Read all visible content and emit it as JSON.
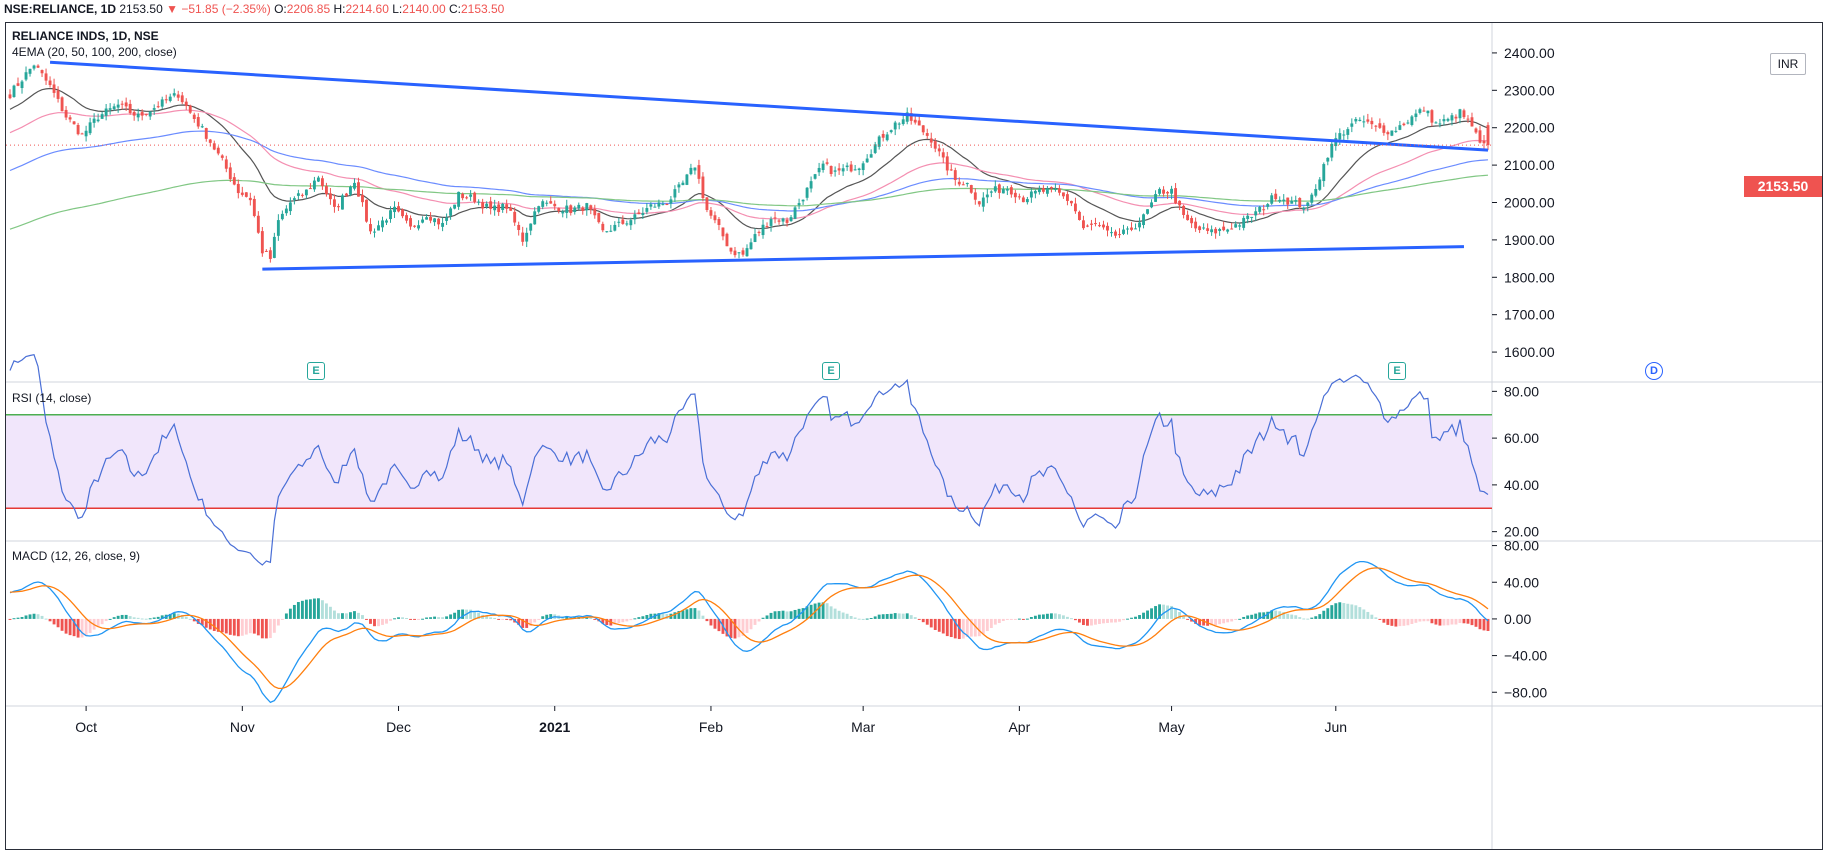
{
  "header": {
    "symbol": "NSE:RELIANCE, 1D",
    "last": "2153.50",
    "change": "−51.85 (−2.35%)",
    "open_label": "O:",
    "open": "2206.85",
    "high_label": "H:",
    "high": "2214.60",
    "low_label": "L:",
    "low": "2140.00",
    "close_label": "C:",
    "close": "2153.50"
  },
  "price_pane": {
    "title": "RELIANCE INDS, 1D, NSE",
    "indicator": "4EMA (20, 50, 100, 200, close)",
    "currency": "INR",
    "last_price": "2153.50",
    "event_badges": [
      "E",
      "E",
      "E",
      "D"
    ]
  },
  "rsi_pane": {
    "title": "RSI (14, close)"
  },
  "macd_pane": {
    "title": "MACD (12, 26, close, 9)"
  },
  "colors": {
    "up": "#26a69a",
    "down": "#ef5350",
    "trendline": "#2962ff",
    "ema20": "#555555",
    "ema50": "#f48fb1",
    "ema100": "#6b8cff",
    "ema200": "#81c784",
    "rsi_line": "#4a6fd6",
    "rsi_band": "#f1e6fb",
    "rsi_upper": "#4caf50",
    "rsi_lower": "#e53935",
    "macd_line": "#2196f3",
    "signal_line": "#ff7f0e"
  },
  "chart_data": [
    {
      "type": "candlestick",
      "title": "RELIANCE INDS, 1D, NSE",
      "ylim": [
        1520,
        2480
      ],
      "yticks": [
        1600,
        1700,
        1800,
        1900,
        2000,
        2100,
        2200,
        2300,
        2400
      ],
      "ytick_labels": [
        "1600.00",
        "1700.00",
        "1800.00",
        "1900.00",
        "2000.00",
        "2100.00",
        "2200.00",
        "2300.00",
        "2400.00"
      ],
      "x_labels": [
        "Oct",
        "Nov",
        "Dec",
        "2021",
        "Feb",
        "Mar",
        "Apr",
        "May",
        "Jun"
      ],
      "x_label_days": [
        19,
        58,
        97,
        136,
        175,
        213,
        252,
        290,
        331
      ],
      "n_days": 370,
      "close_anchors": [
        [
          0,
          2290
        ],
        [
          3,
          2330
        ],
        [
          6,
          2370
        ],
        [
          10,
          2310
        ],
        [
          14,
          2230
        ],
        [
          18,
          2180
        ],
        [
          22,
          2230
        ],
        [
          27,
          2260
        ],
        [
          32,
          2230
        ],
        [
          37,
          2260
        ],
        [
          42,
          2290
        ],
        [
          45,
          2240
        ],
        [
          49,
          2180
        ],
        [
          53,
          2110
        ],
        [
          57,
          2030
        ],
        [
          60,
          2010
        ],
        [
          63,
          1870
        ],
        [
          65,
          1850
        ],
        [
          67,
          1950
        ],
        [
          70,
          2000
        ],
        [
          74,
          2030
        ],
        [
          77,
          2070
        ],
        [
          81,
          1980
        ],
        [
          86,
          2060
        ],
        [
          90,
          1920
        ],
        [
          96,
          1980
        ],
        [
          100,
          1930
        ],
        [
          104,
          1970
        ],
        [
          108,
          1940
        ],
        [
          112,
          2020
        ],
        [
          116,
          2010
        ],
        [
          120,
          1980
        ],
        [
          124,
          1990
        ],
        [
          128,
          1900
        ],
        [
          132,
          2000
        ],
        [
          136,
          1990
        ],
        [
          140,
          1980
        ],
        [
          144,
          1990
        ],
        [
          148,
          1920
        ],
        [
          152,
          1940
        ],
        [
          156,
          1960
        ],
        [
          160,
          1990
        ],
        [
          164,
          2000
        ],
        [
          168,
          2050
        ],
        [
          171,
          2100
        ],
        [
          174,
          1980
        ],
        [
          177,
          1930
        ],
        [
          180,
          1870
        ],
        [
          183,
          1860
        ],
        [
          186,
          1910
        ],
        [
          190,
          1960
        ],
        [
          194,
          1950
        ],
        [
          197,
          2000
        ],
        [
          200,
          2050
        ],
        [
          203,
          2100
        ],
        [
          206,
          2080
        ],
        [
          209,
          2090
        ],
        [
          212,
          2100
        ],
        [
          215,
          2140
        ],
        [
          218,
          2180
        ],
        [
          221,
          2210
        ],
        [
          224,
          2230
        ],
        [
          227,
          2200
        ],
        [
          230,
          2170
        ],
        [
          233,
          2110
        ],
        [
          236,
          2060
        ],
        [
          239,
          2050
        ],
        [
          242,
          2000
        ],
        [
          245,
          2030
        ],
        [
          249,
          2040
        ],
        [
          253,
          2010
        ],
        [
          257,
          2030
        ],
        [
          261,
          2030
        ],
        [
          265,
          2000
        ],
        [
          268,
          1930
        ],
        [
          271,
          1940
        ],
        [
          275,
          1910
        ],
        [
          279,
          1920
        ],
        [
          283,
          1960
        ],
        [
          287,
          2030
        ],
        [
          290,
          2030
        ],
        [
          293,
          1960
        ],
        [
          296,
          1930
        ],
        [
          300,
          1920
        ],
        [
          304,
          1930
        ],
        [
          308,
          1950
        ],
        [
          312,
          1980
        ],
        [
          316,
          2020
        ],
        [
          320,
          2000
        ],
        [
          324,
          1990
        ],
        [
          327,
          2070
        ],
        [
          329,
          2130
        ],
        [
          331,
          2170
        ],
        [
          334,
          2200
        ],
        [
          337,
          2220
        ],
        [
          341,
          2200
        ],
        [
          345,
          2190
        ],
        [
          349,
          2220
        ],
        [
          353,
          2250
        ],
        [
          356,
          2210
        ],
        [
          359,
          2220
        ],
        [
          362,
          2240
        ],
        [
          365,
          2205
        ],
        [
          367,
          2153.5
        ]
      ],
      "trendlines": [
        {
          "name": "resistance",
          "from": [
            10,
            2375
          ],
          "to": [
            369,
            2140
          ]
        },
        {
          "name": "support",
          "from": [
            63,
            1822
          ],
          "to": [
            363,
            1882
          ]
        }
      ],
      "ema_periods": [
        20,
        50,
        100,
        200
      ]
    },
    {
      "type": "line",
      "title": "RSI (14, close)",
      "ylim": [
        16,
        84
      ],
      "yticks": [
        20,
        40,
        60,
        80
      ],
      "ytick_labels": [
        "20.00",
        "40.00",
        "60.00",
        "80.00"
      ],
      "band": [
        30,
        70
      ],
      "rsi_length": 14
    },
    {
      "type": "line+bar",
      "title": "MACD (12, 26, close, 9)",
      "ylim": [
        -95,
        85
      ],
      "yticks": [
        -80,
        -40,
        0,
        40,
        80
      ],
      "ytick_labels": [
        "−80.00",
        "−40.00",
        "0.00",
        "40.00",
        "80.00"
      ],
      "fast": 12,
      "slow": 26,
      "signal": 9
    }
  ]
}
